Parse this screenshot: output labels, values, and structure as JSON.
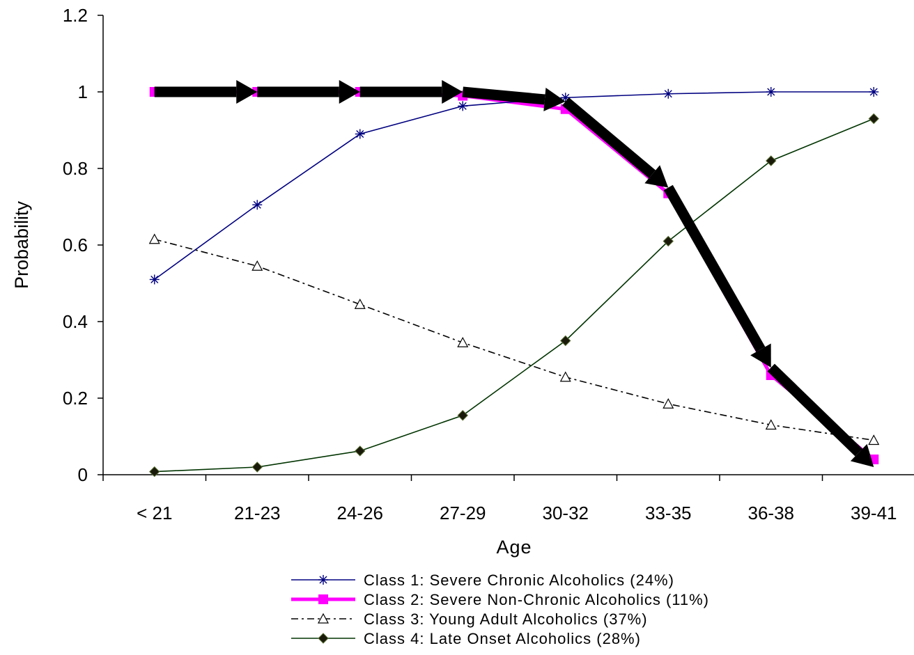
{
  "chart_data": {
    "type": "line",
    "xlabel": "Age",
    "ylabel": "Probability",
    "categories": [
      "< 21",
      "21-23",
      "24-26",
      "27-29",
      "30-32",
      "33-35",
      "36-38",
      "39-41"
    ],
    "ylim": [
      0,
      1.2
    ],
    "yticks": [
      "0",
      "0.2",
      "0.4",
      "0.6",
      "0.8",
      "1",
      "1.2"
    ],
    "grid": false,
    "legend_position": "bottom",
    "series": [
      {
        "name": "Class 1: Severe Chronic Alcoholics (24%)",
        "values": [
          0.51,
          0.705,
          0.89,
          0.963,
          0.985,
          0.995,
          1.0,
          1.0
        ],
        "color": "#000080",
        "marker": "asterisk",
        "line_style": "solid"
      },
      {
        "name": "Class 2: Severe Non-Chronic Alcoholics (11%)",
        "values": [
          1.0,
          1.0,
          1.0,
          0.99,
          0.955,
          0.735,
          0.26,
          0.04
        ],
        "color": "#ff00ff",
        "marker": "square",
        "line_style": "solid"
      },
      {
        "name": "Class 3: Young Adult Alcoholics (37%)",
        "values": [
          0.615,
          0.545,
          0.445,
          0.345,
          0.255,
          0.185,
          0.13,
          0.09
        ],
        "color": "#000000",
        "marker": "triangle",
        "line_style": "dash-dot"
      },
      {
        "name": "Class 4: Late Onset Alcoholics (28%)",
        "values": [
          0.008,
          0.02,
          0.062,
          0.155,
          0.35,
          0.61,
          0.82,
          0.93
        ],
        "color": "#003300",
        "marker": "diamond",
        "line_style": "solid"
      }
    ],
    "annotations": [
      {
        "type": "arrow-path",
        "color": "#000000",
        "description": "thick black arrows tracing Class 2",
        "points": [
          [
            0,
            1.0
          ],
          [
            1,
            1.0
          ],
          [
            2,
            1.0
          ],
          [
            3,
            1.0
          ],
          [
            4,
            0.975
          ],
          [
            5,
            0.75
          ],
          [
            6,
            0.28
          ],
          [
            7,
            0.02
          ]
        ]
      }
    ]
  }
}
